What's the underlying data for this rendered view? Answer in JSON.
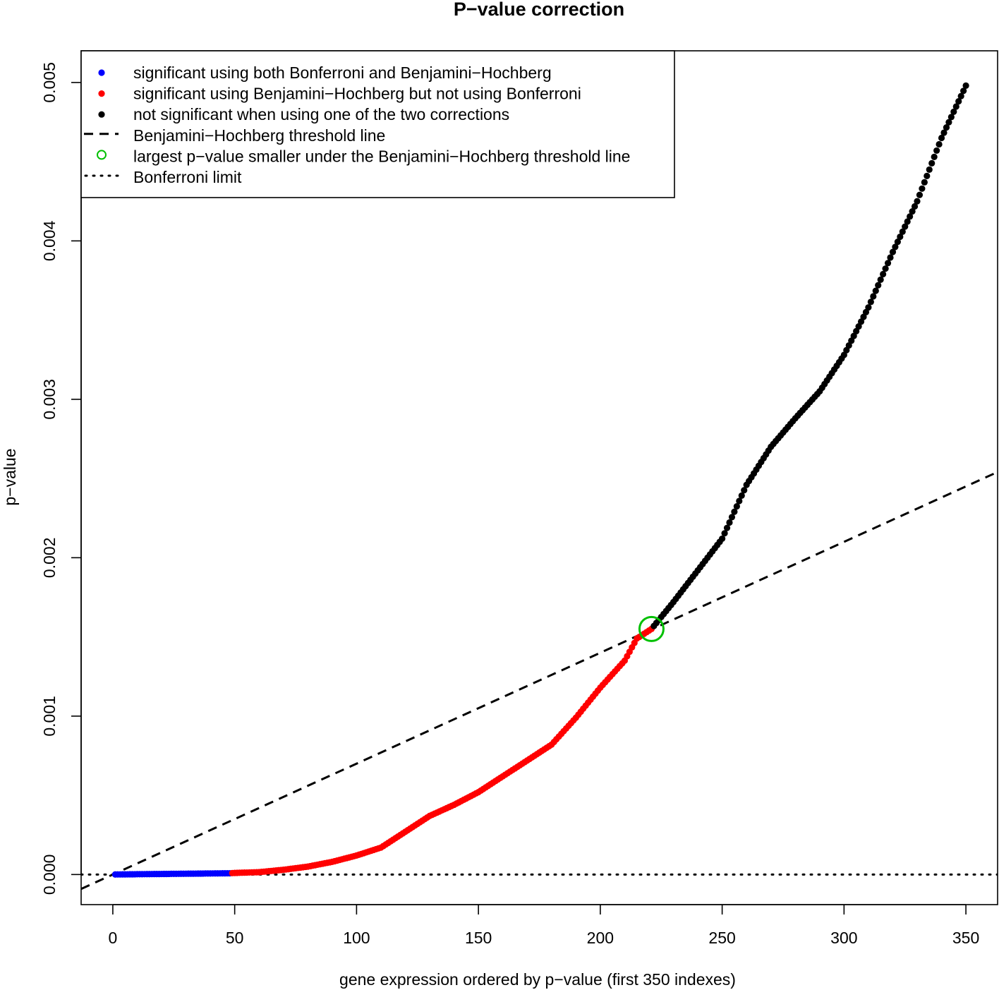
{
  "chart_data": {
    "type": "scatter",
    "title": "P−value correction",
    "xlabel": "gene expression ordered by p−value (first 350 indexes)",
    "ylabel": "p−value",
    "xlim": [
      -13,
      363
    ],
    "ylim": [
      -0.00019,
      0.0052
    ],
    "x_ticks": [
      0,
      50,
      100,
      150,
      200,
      250,
      300,
      350
    ],
    "x_tick_labels": [
      "0",
      "50",
      "100",
      "150",
      "200",
      "250",
      "300",
      "350"
    ],
    "y_ticks": [
      0.0,
      0.001,
      0.002,
      0.003,
      0.004,
      0.005
    ],
    "y_tick_labels": [
      "0.000",
      "0.001",
      "0.002",
      "0.003",
      "0.004",
      "0.005"
    ],
    "legend_position": "top-left",
    "legend": [
      {
        "label": "significant using both Bonferroni and Benjamini−Hochberg",
        "symbol": "dot",
        "color": "#0000ff"
      },
      {
        "label": "significant using Benjamini−Hochberg but not using Bonferroni",
        "symbol": "dot",
        "color": "#ff0000"
      },
      {
        "label": "not significant when using one of the two corrections",
        "symbol": "dot",
        "color": "#000000"
      },
      {
        "label": "Benjamini−Hochberg threshold line",
        "symbol": "dashed-line",
        "color": "#000000"
      },
      {
        "label": "largest p−value smaller under the Benjamini−Hochberg threshold line",
        "symbol": "open-circle",
        "color": "#00c000"
      },
      {
        "label": "Bonferroni limit",
        "symbol": "dotted-line",
        "color": "#000000"
      }
    ],
    "groups": [
      {
        "name": "significant using both Bonferroni and Benjamini−Hochberg",
        "color": "#0000ff",
        "x_range": [
          1,
          48
        ]
      },
      {
        "name": "significant using Benjamini−Hochberg but not using Bonferroni",
        "color": "#ff0000",
        "x_range": [
          49,
          221
        ]
      },
      {
        "name": "not significant when using one of the two corrections",
        "color": "#000000",
        "x_range": [
          222,
          350
        ]
      }
    ],
    "curve_x": [
      1,
      48,
      50,
      60,
      70,
      80,
      90,
      100,
      110,
      120,
      130,
      140,
      150,
      160,
      170,
      180,
      190,
      200,
      210,
      215,
      221,
      230,
      240,
      250,
      260,
      270,
      280,
      290,
      300,
      310,
      320,
      330,
      340,
      350
    ],
    "curve_y": [
      5e-07,
      8e-06,
      1e-05,
      1.5e-05,
      3e-05,
      5e-05,
      8e-05,
      0.00012,
      0.00017,
      0.00027,
      0.00037,
      0.00044,
      0.00052,
      0.00062,
      0.00072,
      0.00082,
      0.00099,
      0.00118,
      0.00135,
      0.00149,
      0.00155,
      0.00172,
      0.00192,
      0.00212,
      0.00246,
      0.0027,
      0.00288,
      0.00305,
      0.00328,
      0.00358,
      0.00393,
      0.00425,
      0.00465,
      0.00498
    ],
    "bh_line": {
      "slope": 7e-06,
      "intercept": 0.0
    },
    "bonferroni_limit": 1e-07,
    "highlight_point": {
      "x": 221,
      "y": 0.00155
    }
  }
}
